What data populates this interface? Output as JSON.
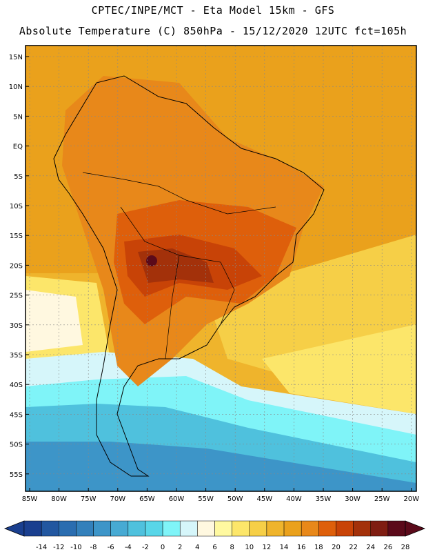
{
  "header": {
    "line1": "CPTEC/INPE/MCT -  Eta Model 15km - GFS",
    "line2": "Absolute Temperature (C) 850hPa - 15/12/2020 12UTC fct=105h"
  },
  "map": {
    "lat_labels": [
      "15N",
      "10N",
      "5N",
      "EQ",
      "5S",
      "10S",
      "15S",
      "20S",
      "25S",
      "30S",
      "35S",
      "40S",
      "45S",
      "50S",
      "55S"
    ],
    "lon_labels": [
      "85W",
      "80W",
      "75W",
      "70W",
      "65W",
      "60W",
      "55W",
      "50W",
      "45W",
      "40W",
      "35W",
      "30W",
      "25W",
      "20W"
    ]
  },
  "colorbar": {
    "labels": [
      "-14",
      "-12",
      "-10",
      "-8",
      "-6",
      "-4",
      "-2",
      "0",
      "2",
      "4",
      "6",
      "8",
      "10",
      "12",
      "14",
      "16",
      "18",
      "20",
      "22",
      "24",
      "26",
      "28"
    ],
    "colors": [
      "#1a3f8f",
      "#2257a0",
      "#2a6db0",
      "#3380bb",
      "#3d95c8",
      "#47aad3",
      "#4fc1dd",
      "#58d6e8",
      "#7ff4f8",
      "#d6f6fa",
      "#fff8e0",
      "#fff9a0",
      "#fce66a",
      "#f6cf47",
      "#efb42c",
      "#eaa11c",
      "#e8881a",
      "#de5f0b",
      "#c84307",
      "#a3310a",
      "#7f1d12",
      "#5b0a1a"
    ]
  }
}
